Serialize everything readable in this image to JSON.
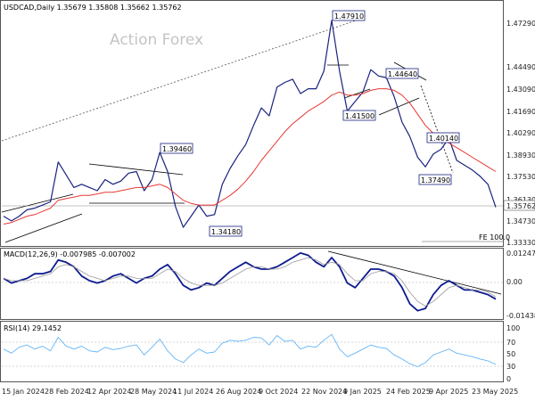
{
  "chart_data": [
    {
      "type": "candlestick",
      "title": "USDCAD,Daily  1.35679 1.35808 1.35662 1.35762",
      "watermark": "Action Forex",
      "x_tick_labels": [
        "15 Jan 2024",
        "28 Feb 2024",
        "12 Apr 2024",
        "28 May 2024",
        "11 Jul 2024",
        "26 Aug 2024",
        "9 Oct 2024",
        "22 Nov 2024",
        "9 Jan 2025",
        "24 Feb 2025",
        "9 Apr 2025",
        "23 May 2025"
      ],
      "y_tick_labels": [
        "1.47290",
        "1.44490",
        "1.43090",
        "1.41690",
        "1.40290",
        "1.38930",
        "1.37530",
        "1.36130",
        "1.34730",
        "1.33330"
      ],
      "ylim": [
        1.3333,
        1.4799
      ],
      "current_price": "1.35762",
      "annotations": [
        "1.47910",
        "1.39460",
        "1.34180",
        "1.41500",
        "1.44640",
        "1.40140",
        "1.37490"
      ],
      "fib_label": "FE 100.0",
      "series": [
        {
          "name": "close",
          "color": "#1a237e",
          "values": [
            1.352,
            1.349,
            1.352,
            1.356,
            1.357,
            1.359,
            1.361,
            1.386,
            1.378,
            1.37,
            1.372,
            1.37,
            1.368,
            1.375,
            1.372,
            1.374,
            1.379,
            1.38,
            1.368,
            1.375,
            1.392,
            1.38,
            1.358,
            1.345,
            1.352,
            1.359,
            1.352,
            1.353,
            1.372,
            1.382,
            1.39,
            1.397,
            1.409,
            1.42,
            1.415,
            1.433,
            1.436,
            1.438,
            1.429,
            1.432,
            1.432,
            1.443,
            1.475,
            1.443,
            1.418,
            1.424,
            1.43,
            1.444,
            1.44,
            1.439,
            1.427,
            1.411,
            1.402,
            1.389,
            1.383,
            1.391,
            1.394,
            1.401,
            1.387,
            1.384,
            1.381,
            1.377,
            1.372,
            1.3576
          ]
        },
        {
          "name": "moving average",
          "color": "#e53935",
          "values": [
            1.347,
            1.348,
            1.35,
            1.352,
            1.353,
            1.355,
            1.357,
            1.362,
            1.363,
            1.364,
            1.365,
            1.365,
            1.366,
            1.367,
            1.367,
            1.368,
            1.369,
            1.37,
            1.37,
            1.371,
            1.372,
            1.37,
            1.366,
            1.362,
            1.36,
            1.359,
            1.359,
            1.359,
            1.362,
            1.365,
            1.369,
            1.374,
            1.38,
            1.387,
            1.393,
            1.399,
            1.405,
            1.41,
            1.414,
            1.418,
            1.421,
            1.424,
            1.428,
            1.43,
            1.428,
            1.428,
            1.429,
            1.431,
            1.432,
            1.432,
            1.431,
            1.428,
            1.423,
            1.416,
            1.409,
            1.404,
            1.401,
            1.398,
            1.395,
            1.392,
            1.389,
            1.386,
            1.383,
            1.38
          ]
        }
      ]
    },
    {
      "type": "line",
      "title": "MACD(12,26,9) -0.007985 -0.007002",
      "y_tick_labels": [
        "0.012472",
        "0.00",
        "-0.014389"
      ],
      "ylim": [
        -0.0162,
        0.0135
      ],
      "series": [
        {
          "name": "macd",
          "color": "#0d1b8e",
          "values": [
            0.001,
            -0.001,
            0.0,
            0.001,
            0.003,
            0.003,
            0.004,
            0.009,
            0.008,
            0.006,
            0.002,
            0.0,
            -0.001,
            0.0,
            0.002,
            0.003,
            0.001,
            -0.001,
            0.001,
            0.002,
            0.005,
            0.007,
            0.003,
            -0.002,
            -0.004,
            -0.003,
            -0.001,
            -0.002,
            0.001,
            0.004,
            0.006,
            0.008,
            0.006,
            0.005,
            0.005,
            0.006,
            0.008,
            0.01,
            0.012,
            0.011,
            0.008,
            0.006,
            0.01,
            0.006,
            -0.001,
            -0.003,
            0.001,
            0.005,
            0.005,
            0.004,
            0.002,
            -0.003,
            -0.01,
            -0.013,
            -0.012,
            -0.006,
            -0.002,
            0.0,
            -0.002,
            -0.004,
            -0.004,
            -0.005,
            -0.006,
            -0.008
          ]
        },
        {
          "name": "signal",
          "color": "#999999",
          "values": [
            0.001,
            0.0,
            0.0,
            0.0,
            0.001,
            0.002,
            0.003,
            0.006,
            0.007,
            0.006,
            0.004,
            0.002,
            0.001,
            0.0,
            0.001,
            0.002,
            0.002,
            0.001,
            0.001,
            0.001,
            0.003,
            0.005,
            0.004,
            0.001,
            -0.001,
            -0.002,
            -0.002,
            -0.002,
            -0.001,
            0.001,
            0.003,
            0.005,
            0.006,
            0.006,
            0.005,
            0.005,
            0.006,
            0.008,
            0.009,
            0.01,
            0.009,
            0.007,
            0.008,
            0.007,
            0.003,
            0.0,
            0.0,
            0.003,
            0.004,
            0.004,
            0.003,
            0.0,
            -0.005,
            -0.009,
            -0.011,
            -0.009,
            -0.006,
            -0.003,
            -0.002,
            -0.003,
            -0.004,
            -0.004,
            -0.005,
            -0.007
          ]
        }
      ]
    },
    {
      "type": "line",
      "title": "RSI(14) 29.1452",
      "y_tick_labels": [
        "100",
        "70",
        "50",
        "30",
        "0"
      ],
      "ylim": [
        0,
        100
      ],
      "series": [
        {
          "name": "RSI",
          "color": "#64b5f6",
          "values": [
            55,
            48,
            58,
            62,
            55,
            60,
            52,
            75,
            60,
            55,
            60,
            52,
            50,
            58,
            54,
            56,
            60,
            62,
            45,
            58,
            72,
            52,
            38,
            32,
            45,
            55,
            48,
            50,
            65,
            70,
            68,
            70,
            75,
            74,
            62,
            78,
            68,
            70,
            55,
            60,
            58,
            70,
            80,
            55,
            42,
            48,
            55,
            62,
            58,
            56,
            45,
            38,
            30,
            25,
            32,
            45,
            50,
            55,
            48,
            45,
            42,
            38,
            35,
            29
          ]
        }
      ]
    }
  ]
}
